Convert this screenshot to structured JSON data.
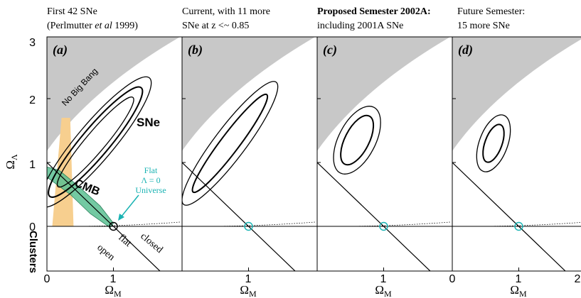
{
  "figure": {
    "y_axis_label_main": "Ω",
    "y_axis_label_sub": "Λ",
    "x_axis_label_main": "Ω",
    "x_axis_label_sub": "M"
  },
  "panels": [
    {
      "tag": "(a)",
      "header_line1": "First 42 SNe",
      "header_line2_pre": "(Perlmutter ",
      "header_line2_italic": "et al",
      "header_line2_post": " 1999)",
      "annotations": {
        "no_big_bang": "No Big Bang",
        "sne": "SNe",
        "cmb": "CMB",
        "clusters": "Clusters",
        "flat_universe_line1": "Flat",
        "flat_universe_line2": "Λ = 0",
        "flat_universe_line3": "Universe",
        "open": "open",
        "flat": "flat",
        "closed": "closed"
      }
    },
    {
      "tag": "(b)",
      "header_line1": "Current, with 11 more",
      "header_line2": "SNe at z <~ 0.85"
    },
    {
      "tag": "(c)",
      "header_line1": "Proposed Semester 2002A:",
      "header_line2": "including 2001A SNe"
    },
    {
      "tag": "(d)",
      "header_line1": "Future Semester:",
      "header_line2": "15 more SNe"
    }
  ],
  "colors": {
    "no_big_bang_region": "#c8c8c8",
    "clusters_band": "#f7cf8f",
    "cmb_band": "#5bbf92",
    "flat_lambda0_marker": "#1ab3b3",
    "contour": "#000000"
  },
  "chart_data": {
    "type": "contour",
    "subplots": 4,
    "x_axis": {
      "label": "ΩM",
      "ticks": [
        0,
        1
      ],
      "range": [
        0,
        2.8
      ]
    },
    "y_axis": {
      "label": "ΩΛ",
      "ticks": [
        0,
        1,
        2,
        3
      ],
      "range": [
        -0.6,
        3
      ]
    },
    "tick_labels": {
      "y": [
        "3",
        "2",
        "1",
        "0"
      ],
      "x": [
        "0",
        "1",
        "2"
      ]
    },
    "flat_universe_line": "ΩM + ΩΛ = 1",
    "marked_point": {
      "omega_m": 1,
      "omega_lambda": 0,
      "label": "Flat Λ = 0 Universe"
    },
    "confidence_contours": [
      {
        "panel": "(a)",
        "center_omega_m": 0.73,
        "center_omega_lambda": 1.32,
        "levels": 3
      },
      {
        "panel": "(b)",
        "center_omega_m": 0.72,
        "center_omega_lambda": 1.3,
        "levels": 2
      },
      {
        "panel": "(c)",
        "center_omega_m": 0.6,
        "center_omega_lambda": 1.35,
        "levels": 2
      },
      {
        "panel": "(d)",
        "center_omega_m": 0.62,
        "center_omega_lambda": 1.3,
        "levels": 2
      }
    ]
  }
}
